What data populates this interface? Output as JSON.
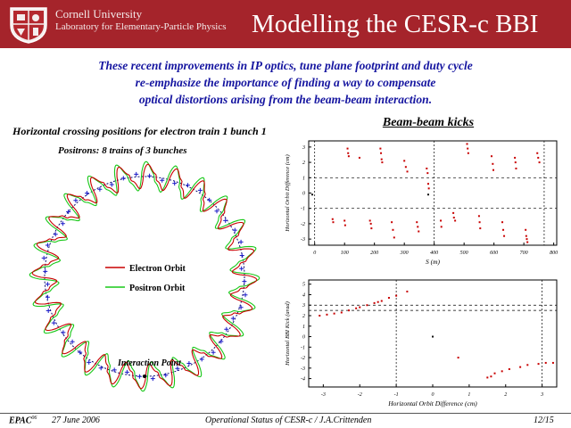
{
  "header": {
    "university": "Cornell University",
    "laboratory": "Laboratory for Elementary-Particle Physics",
    "title": "Modelling the CESR-c BBI"
  },
  "intro": {
    "lines": [
      "These recent improvements in IP optics, tune plane footprint and duty cycle",
      "re-emphasize the importance of finding a way to compensate",
      "optical distortions arising from the beam-beam interaction."
    ]
  },
  "orbit_figure": {
    "title": "Horizontal crossing positions for electron train 1 bunch 1",
    "subtitle": "Positrons: 8 trains of 3 bunches",
    "legend": [
      "Electron Orbit",
      "Positron Orbit"
    ],
    "annotation": "Interaction Point",
    "colors": {
      "electron": "#c80000",
      "positron": "#19c819",
      "crossing": "#1a1ac8",
      "ideal": "#0a0a6e"
    }
  },
  "kicks_label": "Beam-beam kicks",
  "chart_data": [
    {
      "type": "scatter",
      "title": "",
      "xlabel": "S (m)",
      "ylabel": "Horizontal Orbit Difference (cm)",
      "xlim": [
        -20,
        810
      ],
      "ylim": [
        -3.4,
        3.4
      ],
      "xticks": [
        "0",
        "100",
        "200",
        "300",
        "400",
        "500",
        "600",
        "700",
        "800"
      ],
      "yticks": [
        "3",
        "2",
        "1",
        "0",
        "-1",
        "-2",
        "-3"
      ],
      "grid": "dashed lines at y = 1 and y = -1, vertical lines at S = 0, 400, 768",
      "series": [
        {
          "color": "#c80000",
          "points": [
            [
              60,
              -1.7
            ],
            [
              62,
              -1.9
            ],
            [
              100,
              -1.8
            ],
            [
              102,
              -2.1
            ],
            [
              110,
              2.9
            ],
            [
              112,
              2.6
            ],
            [
              114,
              2.4
            ],
            [
              150,
              2.3
            ],
            [
              185,
              -1.8
            ],
            [
              188,
              -2.0
            ],
            [
              190,
              -2.3
            ],
            [
              220,
              2.9
            ],
            [
              222,
              2.6
            ],
            [
              224,
              2.2
            ],
            [
              226,
              2.0
            ],
            [
              258,
              -1.9
            ],
            [
              262,
              -2.4
            ],
            [
              266,
              -2.9
            ],
            [
              300,
              2.1
            ],
            [
              305,
              1.7
            ],
            [
              310,
              1.4
            ],
            [
              342,
              -1.9
            ],
            [
              345,
              -2.2
            ],
            [
              348,
              -2.5
            ],
            [
              375,
              1.6
            ],
            [
              378,
              1.3
            ],
            [
              380,
              0.6
            ],
            [
              382,
              0.3
            ],
            [
              422,
              -1.8
            ],
            [
              424,
              -2.2
            ],
            [
              464,
              -1.3
            ],
            [
              466,
              -1.6
            ],
            [
              470,
              -1.8
            ],
            [
              510,
              3.2
            ],
            [
              512,
              2.9
            ],
            [
              514,
              2.6
            ],
            [
              550,
              -1.5
            ],
            [
              552,
              -1.9
            ],
            [
              554,
              -2.3
            ],
            [
              592,
              2.4
            ],
            [
              596,
              1.9
            ],
            [
              598,
              1.5
            ],
            [
              628,
              -1.9
            ],
            [
              631,
              -2.4
            ],
            [
              634,
              -2.8
            ],
            [
              670,
              2.3
            ],
            [
              672,
              2.0
            ],
            [
              674,
              1.6
            ],
            [
              706,
              -2.4
            ],
            [
              708,
              -2.8
            ],
            [
              710,
              -3.0
            ],
            [
              712,
              -3.2
            ],
            [
              745,
              2.6
            ],
            [
              748,
              2.3
            ],
            [
              752,
              2.0
            ]
          ]
        },
        {
          "color": "#111111",
          "points": [
            [
              -8,
              -0.1
            ],
            [
              380,
              -0.1
            ]
          ]
        }
      ]
    },
    {
      "type": "scatter",
      "title": "",
      "xlabel": "Horizontal Orbit Difference (cm)",
      "ylabel": "Horizontal BBI Kick (arad)",
      "xlim": [
        -3.4,
        3.4
      ],
      "ylim": [
        -4.8,
        5.4
      ],
      "xticks": [
        "-3",
        "-2",
        "-1",
        "0",
        "1",
        "2",
        "3"
      ],
      "yticks": [
        "5",
        "4",
        "3",
        "2",
        "1",
        "0",
        "-1",
        "-2",
        "-3",
        "-4"
      ],
      "grid": "dashed lines at y = 3.0 and y = 2.5, vertical lines at x = -1, 3",
      "series": [
        {
          "color": "#c80000",
          "points": [
            [
              -3.1,
              2.0
            ],
            [
              -2.9,
              2.1
            ],
            [
              -2.7,
              2.2
            ],
            [
              -2.5,
              2.3
            ],
            [
              -2.3,
              2.5
            ],
            [
              -2.1,
              2.7
            ],
            [
              -2.0,
              2.8
            ],
            [
              -1.8,
              3.0
            ],
            [
              -1.6,
              3.2
            ],
            [
              -1.5,
              3.3
            ],
            [
              -1.4,
              3.4
            ],
            [
              -1.2,
              3.7
            ],
            [
              -1.0,
              3.9
            ],
            [
              -0.7,
              4.3
            ],
            [
              1.5,
              -3.9
            ],
            [
              1.6,
              -3.8
            ],
            [
              1.7,
              -3.5
            ],
            [
              1.9,
              -3.3
            ],
            [
              2.1,
              -3.1
            ],
            [
              2.4,
              -2.9
            ],
            [
              2.6,
              -2.7
            ],
            [
              2.9,
              -2.6
            ],
            [
              3.1,
              -2.5
            ],
            [
              3.3,
              -2.5
            ],
            [
              0.7,
              -2.0
            ]
          ]
        },
        {
          "color": "#111111",
          "points": [
            [
              0.0,
              0.0
            ]
          ]
        }
      ]
    }
  ],
  "footer": {
    "conference": "EPAC",
    "conference_year": "06",
    "date": "27 June 2006",
    "talk": "Operational Status of CESR-c / J.A.Crittenden",
    "page": "12/15"
  }
}
